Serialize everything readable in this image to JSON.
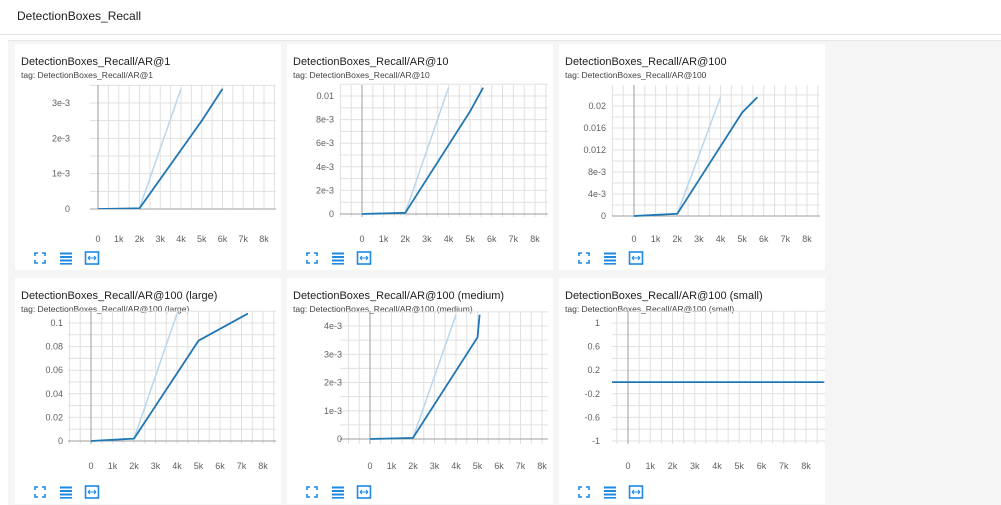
{
  "panel": {
    "title": "DetectionBoxes_Recall"
  },
  "colors": {
    "series": "#1f77b4",
    "series_smoothed_light": "#b7d7ee",
    "grid": "#e0e0e0",
    "axis": "#9e9e9e",
    "icon": "#1e88e5"
  },
  "toolbar_icons": [
    "expand-icon",
    "data-table-icon",
    "fit-domain-icon"
  ],
  "charts": [
    {
      "title": "DetectionBoxes_Recall/AR@1",
      "tag": "tag: DetectionBoxes_Recall/AR@1",
      "x_ticks": [
        "0",
        "1k",
        "2k",
        "3k",
        "4k",
        "5k",
        "6k",
        "7k",
        "8k"
      ],
      "y_ticks": [
        "0",
        "1e-3",
        "2e-3",
        "3e-3"
      ],
      "y_tick_values": [
        0,
        0.001,
        0.002,
        0.003
      ],
      "xlim": [
        -1300,
        8800
      ],
      "ylim": [
        -0.0003,
        0.0034
      ]
    },
    {
      "title": "DetectionBoxes_Recall/AR@10",
      "tag": "tag: DetectionBoxes_Recall/AR@10",
      "x_ticks": [
        "0",
        "1k",
        "2k",
        "3k",
        "4k",
        "5k",
        "6k",
        "7k",
        "8k"
      ],
      "y_ticks": [
        "0",
        "2e-3",
        "4e-3",
        "6e-3",
        "8e-3",
        "0.01"
      ],
      "y_tick_values": [
        0,
        0.002,
        0.004,
        0.006,
        0.008,
        0.01
      ],
      "xlim": [
        -1300,
        8800
      ],
      "ylim": [
        -0.0006,
        0.0107
      ]
    },
    {
      "title": "DetectionBoxes_Recall/AR@100",
      "tag": "tag: DetectionBoxes_Recall/AR@100",
      "x_ticks": [
        "0",
        "1k",
        "2k",
        "3k",
        "4k",
        "5k",
        "6k",
        "7k",
        "8k"
      ],
      "y_ticks": [
        "0",
        "4e-3",
        "8e-3",
        "0.012",
        "0.016",
        "0.02"
      ],
      "y_tick_values": [
        0,
        0.004,
        0.008,
        0.012,
        0.016,
        0.02
      ],
      "xlim": [
        -1300,
        8800
      ],
      "ylim": [
        -0.001,
        0.0216
      ]
    },
    {
      "title": "DetectionBoxes_Recall/AR@100 (large)",
      "tag": "tag: DetectionBoxes_Recall/AR@100 (large)",
      "x_ticks": [
        "0",
        "1k",
        "2k",
        "3k",
        "4k",
        "5k",
        "6k",
        "7k",
        "8k"
      ],
      "y_ticks": [
        "0",
        "0.02",
        "0.04",
        "0.06",
        "0.08",
        "0.1"
      ],
      "y_tick_values": [
        0,
        0.02,
        0.04,
        0.06,
        0.08,
        0.1
      ],
      "xlim": [
        -1000,
        8800
      ],
      "ylim": [
        -0.005,
        0.108
      ]
    },
    {
      "title": "DetectionBoxes_Recall/AR@100 (medium)",
      "tag": "tag: DetectionBoxes_Recall/AR@100 (medium)",
      "x_ticks": [
        "0",
        "1k",
        "2k",
        "3k",
        "4k",
        "5k",
        "6k",
        "7k",
        "8k"
      ],
      "y_ticks": [
        "0",
        "1e-3",
        "2e-3",
        "3e-3",
        "4e-3"
      ],
      "y_tick_values": [
        0,
        0.001,
        0.002,
        0.003,
        0.004
      ],
      "xlim": [
        -1300,
        8800
      ],
      "ylim": [
        -0.0004,
        0.0044
      ]
    },
    {
      "title": "DetectionBoxes_Recall/AR@100 (small)",
      "tag": "tag: DetectionBoxes_Recall/AR@100 (small)",
      "x_ticks": [
        "0",
        "1k",
        "2k",
        "3k",
        "4k",
        "5k",
        "6k",
        "7k",
        "8k"
      ],
      "y_ticks": [
        "-1",
        "-0.6",
        "-0.2",
        "0.2",
        "0.6",
        "1"
      ],
      "y_tick_values": [
        -1,
        -0.6,
        -0.2,
        0.2,
        0.6,
        1
      ],
      "xlim": [
        -1300,
        8800
      ],
      "ylim": [
        -1.1,
        1.1
      ]
    }
  ],
  "chart_data": [
    {
      "type": "line",
      "title": "DetectionBoxes_Recall/AR@1",
      "series": [
        {
          "x": [
            0,
            2000,
            5000,
            6000
          ],
          "y": [
            0,
            2e-05,
            0.0025,
            0.0034
          ]
        },
        {
          "x": [
            2000,
            4000
          ],
          "y": [
            2e-05,
            0.0034
          ],
          "style": "faded"
        }
      ],
      "xlim": [
        0,
        8000
      ],
      "ylim": [
        0,
        0.0034
      ]
    },
    {
      "type": "line",
      "title": "DetectionBoxes_Recall/AR@10",
      "series": [
        {
          "x": [
            0,
            2000,
            5000,
            5600
          ],
          "y": [
            0,
            0.0001,
            0.0087,
            0.0107
          ]
        },
        {
          "x": [
            2000,
            4000
          ],
          "y": [
            0.0001,
            0.0107
          ],
          "style": "faded"
        }
      ],
      "xlim": [
        0,
        8000
      ],
      "ylim": [
        0,
        0.0107
      ]
    },
    {
      "type": "line",
      "title": "DetectionBoxes_Recall/AR@100",
      "series": [
        {
          "x": [
            0,
            2000,
            5000,
            5700
          ],
          "y": [
            0,
            0.0004,
            0.0188,
            0.0216
          ]
        },
        {
          "x": [
            2000,
            4000
          ],
          "y": [
            0.0004,
            0.0216
          ],
          "style": "faded"
        }
      ],
      "xlim": [
        0,
        8000
      ],
      "ylim": [
        0,
        0.0216
      ]
    },
    {
      "type": "line",
      "title": "DetectionBoxes_Recall/AR@100 (large)",
      "series": [
        {
          "x": [
            0,
            2000,
            5000,
            7300
          ],
          "y": [
            0,
            0.002,
            0.085,
            0.108
          ]
        },
        {
          "x": [
            2000,
            4000
          ],
          "y": [
            0.002,
            0.108
          ],
          "style": "faded"
        }
      ],
      "xlim": [
        0,
        8000
      ],
      "ylim": [
        0,
        0.108
      ]
    },
    {
      "type": "line",
      "title": "DetectionBoxes_Recall/AR@100 (medium)",
      "series": [
        {
          "x": [
            0,
            2000,
            5000,
            5100
          ],
          "y": [
            0,
            4e-05,
            0.0036,
            0.0044
          ]
        },
        {
          "x": [
            2000,
            4000
          ],
          "y": [
            4e-05,
            0.0044
          ],
          "style": "faded"
        }
      ],
      "xlim": [
        0,
        8000
      ],
      "ylim": [
        0,
        0.0044
      ]
    },
    {
      "type": "line",
      "title": "DetectionBoxes_Recall/AR@100 (small)",
      "series": [
        {
          "x": [
            -1300,
            8800
          ],
          "y": [
            -0.001,
            -0.001
          ]
        }
      ],
      "xlim": [
        0,
        8000
      ],
      "ylim": [
        -1,
        1
      ]
    }
  ]
}
